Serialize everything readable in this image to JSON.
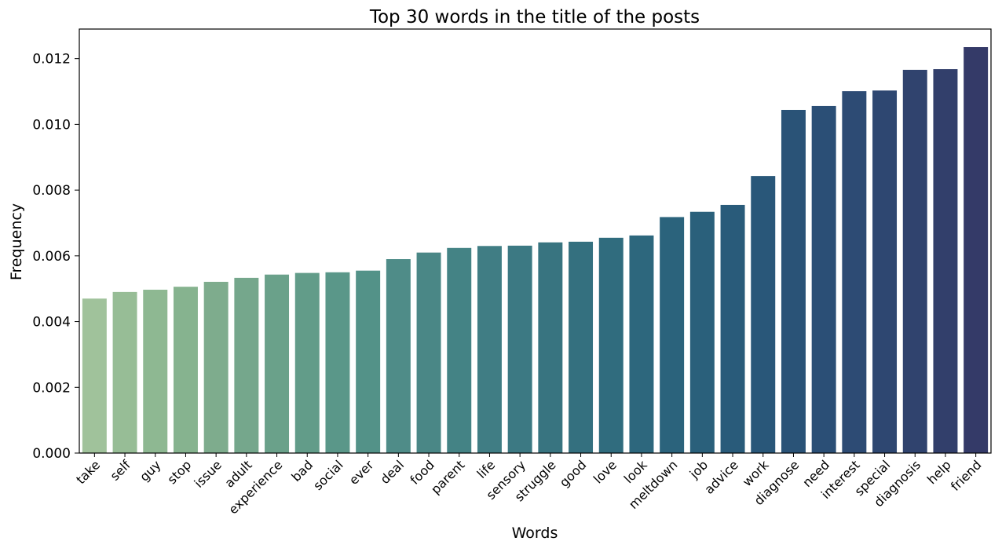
{
  "chart_data": {
    "type": "bar",
    "title": "Top 30 words in the title of the posts",
    "xlabel": "Words",
    "ylabel": "Frequency",
    "ylim": [
      0,
      0.0129
    ],
    "yticks": [
      0.0,
      0.002,
      0.004,
      0.006,
      0.008,
      0.01,
      0.012
    ],
    "ytick_labels": [
      "0.000",
      "0.002",
      "0.004",
      "0.006",
      "0.008",
      "0.010",
      "0.012"
    ],
    "grid": false,
    "categories": [
      "take",
      "self",
      "guy",
      "stop",
      "issue",
      "adult",
      "experience",
      "bad",
      "social",
      "ever",
      "deal",
      "food",
      "parent",
      "life",
      "sensory",
      "struggle",
      "good",
      "love",
      "look",
      "meltdown",
      "job",
      "advice",
      "work",
      "diagnose",
      "need",
      "interest",
      "special",
      "diagnosis",
      "help",
      "friend"
    ],
    "values": [
      0.0047,
      0.0049,
      0.00497,
      0.00506,
      0.00521,
      0.00533,
      0.00543,
      0.00548,
      0.0055,
      0.00555,
      0.0059,
      0.0061,
      0.00624,
      0.0063,
      0.00631,
      0.00641,
      0.00643,
      0.00655,
      0.00662,
      0.00718,
      0.00734,
      0.00755,
      0.00843,
      0.01044,
      0.01056,
      0.01101,
      0.01103,
      0.01166,
      0.01168,
      0.01235
    ],
    "colors": [
      "#a0c29b",
      "#97bd96",
      "#8eb892",
      "#86b38f",
      "#7eac8d",
      "#75a78c",
      "#6aa18a",
      "#629c89",
      "#5a9789",
      "#539288",
      "#4f8c88",
      "#4a8786",
      "#448385",
      "#407d84",
      "#3c7983",
      "#387480",
      "#34707f",
      "#306c7e",
      "#2d677d",
      "#2b637c",
      "#2a607b",
      "#295b7a",
      "#295779",
      "#2a5377",
      "#2b4f76",
      "#2d4b74",
      "#2e4771",
      "#30436e",
      "#323f6b",
      "#343a68"
    ]
  }
}
